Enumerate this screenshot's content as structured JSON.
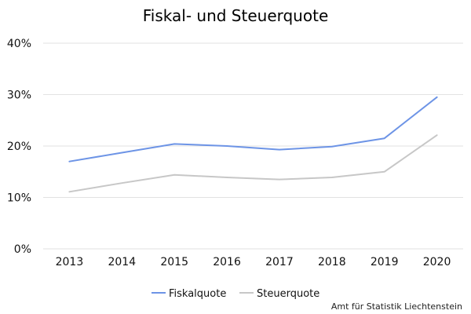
{
  "chart_data": {
    "type": "line",
    "title": "Fiskal- und Steuerquote",
    "xlabel": "",
    "ylabel": "",
    "categories": [
      "2013",
      "2014",
      "2015",
      "2016",
      "2017",
      "2018",
      "2019",
      "2020"
    ],
    "y_ticks": [
      "0%",
      "10%",
      "20%",
      "30%",
      "40%"
    ],
    "ylim": [
      0,
      40
    ],
    "grid": true,
    "legend_position": "bottom",
    "series": [
      {
        "name": "Fiskalquote",
        "color": "#6d94e6",
        "values": [
          17.0,
          18.7,
          20.4,
          20.0,
          19.3,
          19.9,
          21.5,
          29.5
        ]
      },
      {
        "name": "Steuerquote",
        "color": "#c7c7c7",
        "values": [
          11.1,
          12.8,
          14.4,
          13.9,
          13.5,
          13.9,
          15.0,
          22.1
        ]
      }
    ],
    "source": "Amt für Statistik Liechtenstein"
  }
}
